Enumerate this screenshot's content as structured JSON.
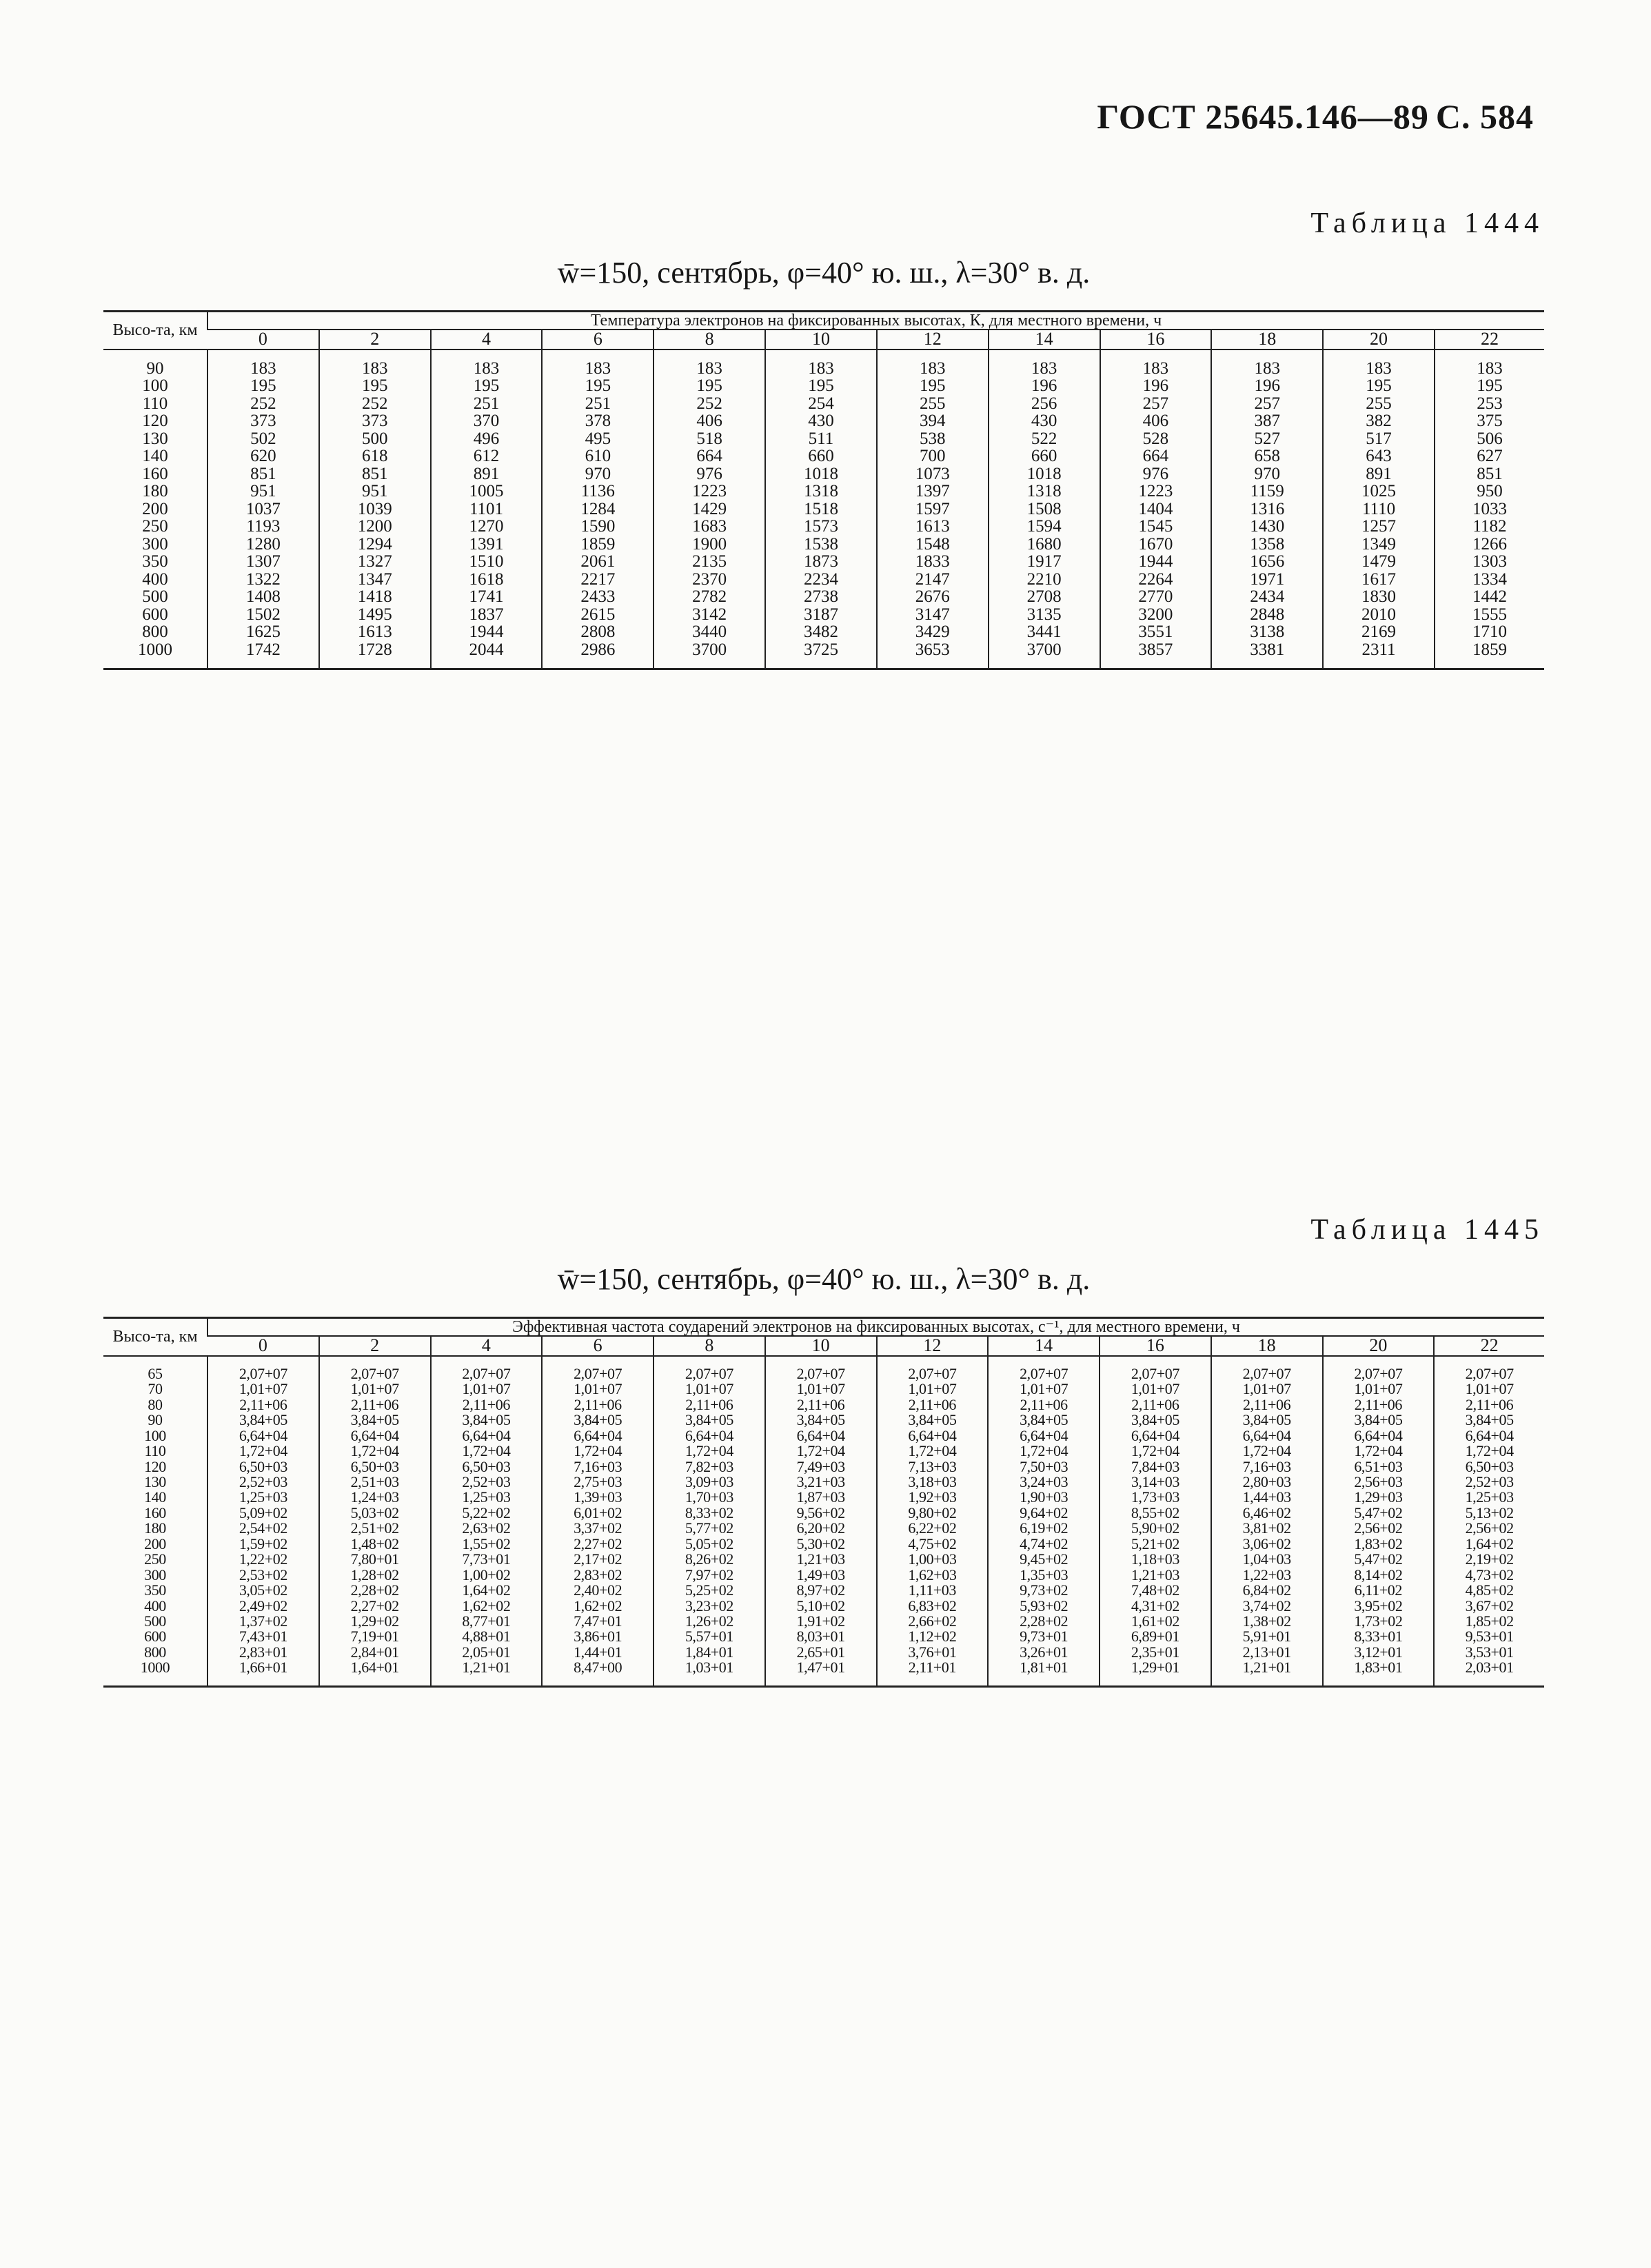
{
  "page_header": {
    "standard": "ГОСТ 25645.146—89",
    "page": "С. 584"
  },
  "table_1444": {
    "number": "Таблица 1444",
    "caption": "w̄=150, сентябрь, φ=40° ю. ш., λ=30° в. д.",
    "altitude_header": "Высо-та, км",
    "variable_header": "Температура электронов на фиксированных высотах, К, для местного времени, ч",
    "hours": [
      "0",
      "2",
      "4",
      "6",
      "8",
      "10",
      "12",
      "14",
      "16",
      "18",
      "20",
      "22"
    ],
    "rows": [
      {
        "alt": "90",
        "v": [
          "183",
          "183",
          "183",
          "183",
          "183",
          "183",
          "183",
          "183",
          "183",
          "183",
          "183",
          "183"
        ]
      },
      {
        "alt": "100",
        "v": [
          "195",
          "195",
          "195",
          "195",
          "195",
          "195",
          "195",
          "196",
          "196",
          "196",
          "195",
          "195"
        ]
      },
      {
        "alt": "110",
        "v": [
          "252",
          "252",
          "251",
          "251",
          "252",
          "254",
          "255",
          "256",
          "257",
          "257",
          "255",
          "253"
        ]
      },
      {
        "alt": "120",
        "v": [
          "373",
          "373",
          "370",
          "378",
          "406",
          "430",
          "394",
          "430",
          "406",
          "387",
          "382",
          "375"
        ]
      },
      {
        "alt": "130",
        "v": [
          "502",
          "500",
          "496",
          "495",
          "518",
          "511",
          "538",
          "522",
          "528",
          "527",
          "517",
          "506"
        ]
      },
      {
        "alt": "140",
        "v": [
          "620",
          "618",
          "612",
          "610",
          "664",
          "660",
          "700",
          "660",
          "664",
          "658",
          "643",
          "627"
        ]
      },
      {
        "alt": "160",
        "v": [
          "851",
          "851",
          "891",
          "970",
          "976",
          "1018",
          "1073",
          "1018",
          "976",
          "970",
          "891",
          "851"
        ]
      },
      {
        "alt": "180",
        "v": [
          "951",
          "951",
          "1005",
          "1136",
          "1223",
          "1318",
          "1397",
          "1318",
          "1223",
          "1159",
          "1025",
          "950"
        ]
      },
      {
        "alt": "200",
        "v": [
          "1037",
          "1039",
          "1101",
          "1284",
          "1429",
          "1518",
          "1597",
          "1508",
          "1404",
          "1316",
          "1110",
          "1033"
        ]
      },
      {
        "alt": "250",
        "v": [
          "1193",
          "1200",
          "1270",
          "1590",
          "1683",
          "1573",
          "1613",
          "1594",
          "1545",
          "1430",
          "1257",
          "1182"
        ]
      },
      {
        "alt": "300",
        "v": [
          "1280",
          "1294",
          "1391",
          "1859",
          "1900",
          "1538",
          "1548",
          "1680",
          "1670",
          "1358",
          "1349",
          "1266"
        ]
      },
      {
        "alt": "350",
        "v": [
          "1307",
          "1327",
          "1510",
          "2061",
          "2135",
          "1873",
          "1833",
          "1917",
          "1944",
          "1656",
          "1479",
          "1303"
        ]
      },
      {
        "alt": "400",
        "v": [
          "1322",
          "1347",
          "1618",
          "2217",
          "2370",
          "2234",
          "2147",
          "2210",
          "2264",
          "1971",
          "1617",
          "1334"
        ]
      },
      {
        "alt": "500",
        "v": [
          "1408",
          "1418",
          "1741",
          "2433",
          "2782",
          "2738",
          "2676",
          "2708",
          "2770",
          "2434",
          "1830",
          "1442"
        ]
      },
      {
        "alt": "600",
        "v": [
          "1502",
          "1495",
          "1837",
          "2615",
          "3142",
          "3187",
          "3147",
          "3135",
          "3200",
          "2848",
          "2010",
          "1555"
        ]
      },
      {
        "alt": "800",
        "v": [
          "1625",
          "1613",
          "1944",
          "2808",
          "3440",
          "3482",
          "3429",
          "3441",
          "3551",
          "3138",
          "2169",
          "1710"
        ]
      },
      {
        "alt": "1000",
        "v": [
          "1742",
          "1728",
          "2044",
          "2986",
          "3700",
          "3725",
          "3653",
          "3700",
          "3857",
          "3381",
          "2311",
          "1859"
        ]
      }
    ]
  },
  "table_1445": {
    "number": "Таблица 1445",
    "caption": "w̄=150, сентябрь, φ=40° ю. ш., λ=30° в. д.",
    "altitude_header": "Высо-та, км",
    "variable_header": "Эффективная частота соударений электронов на фиксированных высотах, с⁻¹, для местного времени, ч",
    "hours": [
      "0",
      "2",
      "4",
      "6",
      "8",
      "10",
      "12",
      "14",
      "16",
      "18",
      "20",
      "22"
    ],
    "rows": [
      {
        "alt": "65",
        "v": [
          "2,07+07",
          "2,07+07",
          "2,07+07",
          "2,07+07",
          "2,07+07",
          "2,07+07",
          "2,07+07",
          "2,07+07",
          "2,07+07",
          "2,07+07",
          "2,07+07",
          "2,07+07"
        ]
      },
      {
        "alt": "70",
        "v": [
          "1,01+07",
          "1,01+07",
          "1,01+07",
          "1,01+07",
          "1,01+07",
          "1,01+07",
          "1,01+07",
          "1,01+07",
          "1,01+07",
          "1,01+07",
          "1,01+07",
          "1,01+07"
        ]
      },
      {
        "alt": "80",
        "v": [
          "2,11+06",
          "2,11+06",
          "2,11+06",
          "2,11+06",
          "2,11+06",
          "2,11+06",
          "2,11+06",
          "2,11+06",
          "2,11+06",
          "2,11+06",
          "2,11+06",
          "2,11+06"
        ]
      },
      {
        "alt": "90",
        "v": [
          "3,84+05",
          "3,84+05",
          "3,84+05",
          "3,84+05",
          "3,84+05",
          "3,84+05",
          "3,84+05",
          "3,84+05",
          "3,84+05",
          "3,84+05",
          "3,84+05",
          "3,84+05"
        ]
      },
      {
        "alt": "100",
        "v": [
          "6,64+04",
          "6,64+04",
          "6,64+04",
          "6,64+04",
          "6,64+04",
          "6,64+04",
          "6,64+04",
          "6,64+04",
          "6,64+04",
          "6,64+04",
          "6,64+04",
          "6,64+04"
        ]
      },
      {
        "alt": "110",
        "v": [
          "1,72+04",
          "1,72+04",
          "1,72+04",
          "1,72+04",
          "1,72+04",
          "1,72+04",
          "1,72+04",
          "1,72+04",
          "1,72+04",
          "1,72+04",
          "1,72+04",
          "1,72+04"
        ]
      },
      {
        "alt": "120",
        "v": [
          "6,50+03",
          "6,50+03",
          "6,50+03",
          "7,16+03",
          "7,82+03",
          "7,49+03",
          "7,13+03",
          "7,50+03",
          "7,84+03",
          "7,16+03",
          "6,51+03",
          "6,50+03"
        ]
      },
      {
        "alt": "130",
        "v": [
          "2,52+03",
          "2,51+03",
          "2,52+03",
          "2,75+03",
          "3,09+03",
          "3,21+03",
          "3,18+03",
          "3,24+03",
          "3,14+03",
          "2,80+03",
          "2,56+03",
          "2,52+03"
        ]
      },
      {
        "alt": "140",
        "v": [
          "1,25+03",
          "1,24+03",
          "1,25+03",
          "1,39+03",
          "1,70+03",
          "1,87+03",
          "1,92+03",
          "1,90+03",
          "1,73+03",
          "1,44+03",
          "1,29+03",
          "1,25+03"
        ]
      },
      {
        "alt": "160",
        "v": [
          "5,09+02",
          "5,03+02",
          "5,22+02",
          "6,01+02",
          "8,33+02",
          "9,56+02",
          "9,80+02",
          "9,64+02",
          "8,55+02",
          "6,46+02",
          "5,47+02",
          "5,13+02"
        ]
      },
      {
        "alt": "180",
        "v": [
          "2,54+02",
          "2,51+02",
          "2,63+02",
          "3,37+02",
          "5,77+02",
          "6,20+02",
          "6,22+02",
          "6,19+02",
          "5,90+02",
          "3,81+02",
          "2,56+02",
          "2,56+02"
        ]
      },
      {
        "alt": "200",
        "v": [
          "1,59+02",
          "1,48+02",
          "1,55+02",
          "2,27+02",
          "5,05+02",
          "5,30+02",
          "4,75+02",
          "4,74+02",
          "5,21+02",
          "3,06+02",
          "1,83+02",
          "1,64+02"
        ]
      },
      {
        "alt": "250",
        "v": [
          "1,22+02",
          "7,80+01",
          "7,73+01",
          "2,17+02",
          "8,26+02",
          "1,21+03",
          "1,00+03",
          "9,45+02",
          "1,18+03",
          "1,04+03",
          "5,47+02",
          "2,19+02"
        ]
      },
      {
        "alt": "300",
        "v": [
          "2,53+02",
          "1,28+02",
          "1,00+02",
          "2,83+02",
          "7,97+02",
          "1,49+03",
          "1,62+03",
          "1,35+03",
          "1,21+03",
          "1,22+03",
          "8,14+02",
          "4,73+02"
        ]
      },
      {
        "alt": "350",
        "v": [
          "3,05+02",
          "2,28+02",
          "1,64+02",
          "2,40+02",
          "5,25+02",
          "8,97+02",
          "1,11+03",
          "9,73+02",
          "7,48+02",
          "6,84+02",
          "6,11+02",
          "4,85+02"
        ]
      },
      {
        "alt": "400",
        "v": [
          "2,49+02",
          "2,27+02",
          "1,62+02",
          "1,62+02",
          "3,23+02",
          "5,10+02",
          "6,83+02",
          "5,93+02",
          "4,31+02",
          "3,74+02",
          "3,95+02",
          "3,67+02"
        ]
      },
      {
        "alt": "500",
        "v": [
          "1,37+02",
          "1,29+02",
          "8,77+01",
          "7,47+01",
          "1,26+02",
          "1,91+02",
          "2,66+02",
          "2,28+02",
          "1,61+02",
          "1,38+02",
          "1,73+02",
          "1,85+02"
        ]
      },
      {
        "alt": "600",
        "v": [
          "7,43+01",
          "7,19+01",
          "4,88+01",
          "3,86+01",
          "5,57+01",
          "8,03+01",
          "1,12+02",
          "9,73+01",
          "6,89+01",
          "5,91+01",
          "8,33+01",
          "9,53+01"
        ]
      },
      {
        "alt": "800",
        "v": [
          "2,83+01",
          "2,84+01",
          "2,05+01",
          "1,44+01",
          "1,84+01",
          "2,65+01",
          "3,76+01",
          "3,26+01",
          "2,35+01",
          "2,13+01",
          "3,12+01",
          "3,53+01"
        ]
      },
      {
        "alt": "1000",
        "v": [
          "1,66+01",
          "1,64+01",
          "1,21+01",
          "8,47+00",
          "1,03+01",
          "1,47+01",
          "2,11+01",
          "1,81+01",
          "1,29+01",
          "1,21+01",
          "1,83+01",
          "2,03+01"
        ]
      }
    ]
  }
}
